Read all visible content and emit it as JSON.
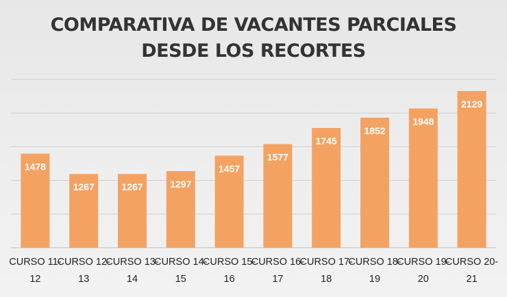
{
  "chart_data": {
    "type": "bar",
    "title_lines": [
      "COMPARATIVA DE VACANTES PARCIALES",
      "DESDE LOS RECORTES"
    ],
    "categories": [
      [
        "CURSO 11-",
        "12"
      ],
      [
        "CURSO 12-",
        "13"
      ],
      [
        "CURSO 13-",
        "14"
      ],
      [
        "CURSO 14-",
        "15"
      ],
      [
        "CURSO 15-",
        "16"
      ],
      [
        "CURSO 16-",
        "17"
      ],
      [
        "CURSO 17-",
        "18"
      ],
      [
        "CURSO 18-",
        "19"
      ],
      [
        "CURSO 19-",
        "20"
      ],
      [
        "CURSO 20-",
        "21"
      ]
    ],
    "values": [
      1478,
      1267,
      1267,
      1297,
      1457,
      1577,
      1745,
      1852,
      1948,
      2129
    ],
    "ylim": [
      500,
      2250
    ],
    "grid": true,
    "xlabel": "",
    "ylabel": "",
    "colors": {
      "bar": "#f4a262",
      "grid": "#cfcfcf",
      "axis": "#bdbdbd",
      "label": "#ffffff"
    }
  }
}
